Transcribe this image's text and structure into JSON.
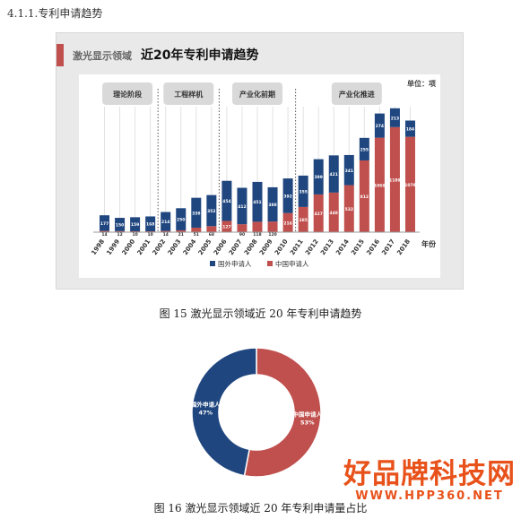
{
  "doc": {
    "section_heading": "4.1.1.专利申请趋势",
    "figure1_caption": "图 15 激光显示领域近 20 年专利申请趋势",
    "figure2_caption": "图 16 激光显示领域近 20 年专利申请量占比"
  },
  "figure1_header": {
    "domain": "激光显示领域",
    "title": "近20年专利申请趋势",
    "accent_color": "#c0504d"
  },
  "watermark": {
    "main": "好品牌科技网",
    "url": "WWW.HPP360.NET",
    "color": "#e8521a"
  },
  "chart_data": [
    {
      "type": "bar",
      "stacked": true,
      "unit_label": "单位：项",
      "xlabel": "年份",
      "categories": [
        "1998",
        "1999",
        "2000",
        "2001",
        "2002",
        "2003",
        "2004",
        "2005",
        "2006",
        "2007",
        "2008",
        "2009",
        "2010",
        "2011",
        "2012",
        "2013",
        "2014",
        "2015",
        "2016",
        "2017",
        "2018"
      ],
      "series": [
        {
          "name": "国外申请人",
          "color": "#1f467f",
          "values": [
            177,
            150,
            159,
            168,
            214,
            250,
            338,
            352,
            454,
            412,
            451,
            388,
            392,
            355,
            399,
            421,
            341,
            255,
            274,
            213,
            184
          ]
        },
        {
          "name": "中国申请人",
          "color": "#c0504d",
          "values": [
            14,
            12,
            10,
            10,
            14,
            21,
            51,
            68,
            127,
            90,
            118,
            120,
            216,
            285,
            427,
            448,
            532,
            812,
            1069,
            1189,
            1079
          ]
        }
      ],
      "stage_labels": [
        {
          "label": "理论阶段",
          "years": [
            "1998",
            "2001"
          ]
        },
        {
          "label": "工程样机",
          "years": [
            "2002",
            "2005"
          ]
        },
        {
          "label": "产业化前期",
          "years": [
            "2006",
            "2010"
          ]
        },
        {
          "label": "产业化推进",
          "years": [
            "2011",
            "2018"
          ]
        }
      ],
      "ylim": [
        0,
        1400
      ],
      "legend": "bottom"
    },
    {
      "type": "pie",
      "donut": true,
      "slices": [
        {
          "label": "中国申请人",
          "percent": 53,
          "color": "#c0504d"
        },
        {
          "label": "国外申请人",
          "percent": 47,
          "color": "#1f467f"
        }
      ]
    }
  ]
}
